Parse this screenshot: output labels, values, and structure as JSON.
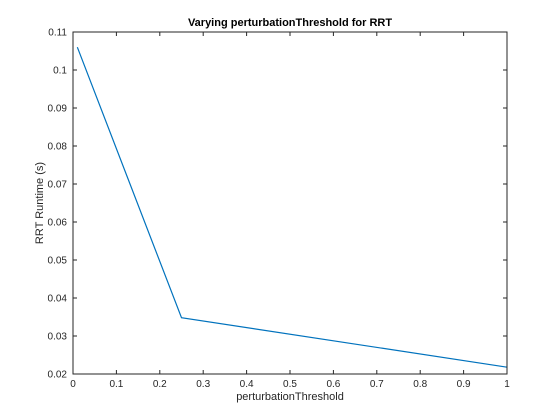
{
  "chart_data": {
    "type": "line",
    "title": "Varying perturbationThreshold for RRT",
    "xlabel": "perturbationThreshold",
    "ylabel": "RRT Runtime (s)",
    "xlim": [
      0,
      1
    ],
    "ylim": [
      0.02,
      0.11
    ],
    "xticks": [
      0,
      0.1,
      0.2,
      0.3,
      0.4,
      0.5,
      0.6,
      0.7,
      0.8,
      0.9,
      1
    ],
    "xtick_labels": [
      "0",
      "0.1",
      "0.2",
      "0.3",
      "0.4",
      "0.5",
      "0.6",
      "0.7",
      "0.8",
      "0.9",
      "1"
    ],
    "yticks": [
      0.02,
      0.03,
      0.04,
      0.05,
      0.06,
      0.07,
      0.08,
      0.09,
      0.1,
      0.11
    ],
    "ytick_labels": [
      "0.02",
      "0.03",
      "0.04",
      "0.05",
      "0.06",
      "0.07",
      "0.08",
      "0.09",
      "0.1",
      "0.11"
    ],
    "grid": false,
    "series": [
      {
        "name": "RRT runtime",
        "color": "#0072BD",
        "x": [
          0.01,
          0.25,
          1.0
        ],
        "y": [
          0.106,
          0.0348,
          0.0218
        ]
      }
    ]
  }
}
